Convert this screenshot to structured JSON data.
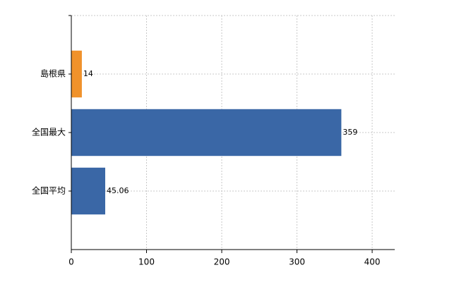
{
  "chart_data": {
    "type": "hbar",
    "categories": [
      "島根県",
      "全国最大",
      "全国平均"
    ],
    "values": [
      14,
      359,
      45.06
    ],
    "colors": [
      "#f0922b",
      "#3a67a6",
      "#3a67a6"
    ],
    "xlim": [
      0,
      430
    ],
    "xticks": [
      0,
      100,
      200,
      300,
      400
    ],
    "grid": true
  }
}
